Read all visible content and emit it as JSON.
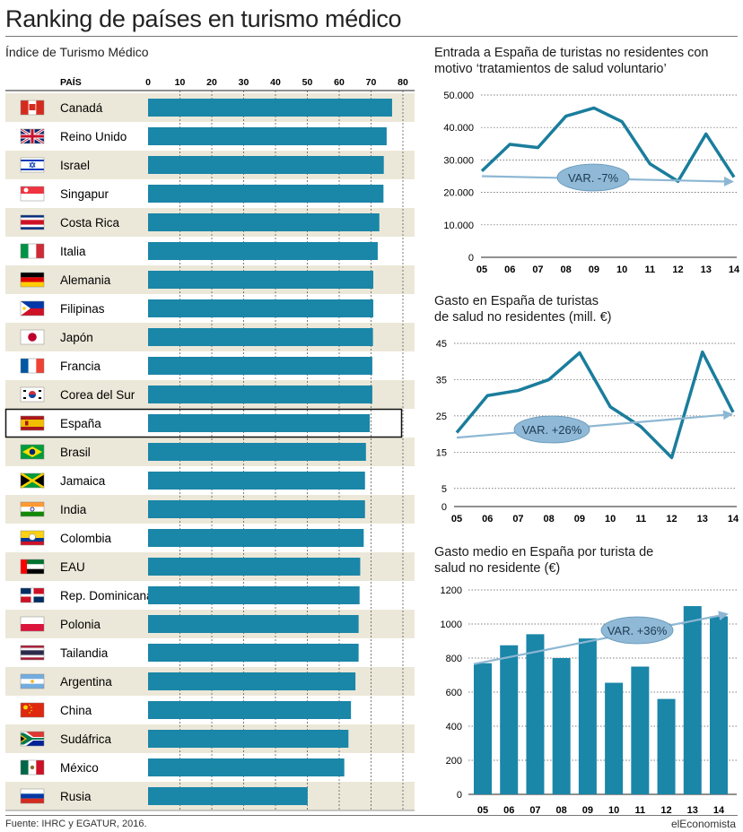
{
  "header": {
    "title": "Ranking de países en turismo médico",
    "left_subtitle": "Índice de Turismo Médico"
  },
  "footer": {
    "source": "Fuente: IHRC y EGATUR, 2016.",
    "brand": "elEconomista"
  },
  "colors": {
    "bar": "#1a86a8",
    "line": "#1a7d9c",
    "trend": "#8db7d3",
    "badge": "#8fb9d6",
    "row_band": "#ece8d9"
  },
  "chart_data": [
    {
      "type": "bar",
      "orientation": "horizontal",
      "column_header": "PAÍS",
      "categories": [
        "Canadá",
        "Reino Unido",
        "Israel",
        "Singapur",
        "Costa Rica",
        "Italia",
        "Alemania",
        "Filipinas",
        "Japón",
        "Francia",
        "Corea del Sur",
        "España",
        "Brasil",
        "Jamaica",
        "India",
        "Colombia",
        "EAU",
        "Rep. Dominicana",
        "Polonia",
        "Tailandia",
        "Argentina",
        "China",
        "Sudáfrica",
        "México",
        "Rusia"
      ],
      "flags": [
        "flag-canada",
        "flag-united-kingdom",
        "flag-israel",
        "flag-singapore",
        "flag-costa-rica",
        "flag-italy",
        "flag-germany",
        "flag-philippines",
        "flag-japan",
        "flag-france",
        "flag-south-korea",
        "flag-spain",
        "flag-brazil",
        "flag-jamaica",
        "flag-india",
        "flag-colombia",
        "flag-uae",
        "flag-dominican-republic",
        "flag-poland",
        "flag-thailand",
        "flag-argentina",
        "flag-china",
        "flag-south-africa",
        "flag-mexico",
        "flag-russia"
      ],
      "values": [
        76.6,
        74.9,
        74.0,
        73.9,
        72.6,
        72.1,
        70.7,
        70.7,
        70.6,
        70.4,
        70.4,
        69.6,
        68.4,
        68.1,
        68.1,
        67.7,
        66.6,
        66.4,
        66.1,
        66.1,
        65.1,
        63.7,
        62.9,
        61.6,
        50.1
      ],
      "highlight": "España",
      "ylim": [
        0,
        80
      ],
      "ticks": [
        0,
        10,
        20,
        30,
        40,
        50,
        60,
        70,
        80
      ],
      "grid": true
    },
    {
      "type": "line",
      "title": "Entrada a España de turistas no residentes con motivo ‘tratamientos de salud voluntario’",
      "x": [
        "05",
        "06",
        "07",
        "08",
        "09",
        "10",
        "11",
        "12",
        "13",
        "14"
      ],
      "values": [
        26600,
        34800,
        33800,
        43500,
        46000,
        41800,
        28800,
        23400,
        38000,
        24700
      ],
      "ylim": [
        0,
        50000
      ],
      "ticks": [
        0,
        10000,
        20000,
        30000,
        40000,
        50000
      ],
      "tick_labels": [
        "0",
        "10.000",
        "20.000",
        "30.000",
        "40.000",
        "50.000"
      ],
      "trend": {
        "start": 25000,
        "end": 23300,
        "label": "VAR. -7%"
      },
      "grid": true
    },
    {
      "type": "line",
      "title": "Gasto en España de turistas de salud  no residentes (mill. €)",
      "x": [
        "05",
        "06",
        "07",
        "08",
        "09",
        "10",
        "11",
        "12",
        "13",
        "14"
      ],
      "values": [
        20.4,
        30.6,
        32.0,
        35.0,
        42.4,
        27.5,
        22.0,
        13.5,
        42.6,
        26.0
      ],
      "ylim": [
        0,
        45
      ],
      "ticks": [
        0,
        5,
        15,
        25,
        35,
        45
      ],
      "tick_labels": [
        "0",
        "5",
        "15",
        "25",
        "35",
        "45"
      ],
      "trend": {
        "start": 19.0,
        "end": 25.5,
        "label": "VAR. +26%"
      },
      "grid": true
    },
    {
      "type": "bar",
      "title": "Gasto medio en España por turista de salud no residente (€)",
      "categories": [
        "05",
        "06",
        "07",
        "08",
        "09",
        "10",
        "11",
        "12",
        "13",
        "14"
      ],
      "values": [
        770,
        875,
        940,
        800,
        915,
        655,
        750,
        560,
        1105,
        1045
      ],
      "ylim": [
        0,
        1200
      ],
      "ticks": [
        0,
        200,
        400,
        600,
        800,
        1000,
        1200
      ],
      "tick_labels": [
        "0",
        "200",
        "400",
        "600",
        "800",
        "1000",
        "1200"
      ],
      "trend": {
        "start": 765,
        "end": 1060,
        "label": "VAR. +36%"
      },
      "grid": true
    }
  ]
}
